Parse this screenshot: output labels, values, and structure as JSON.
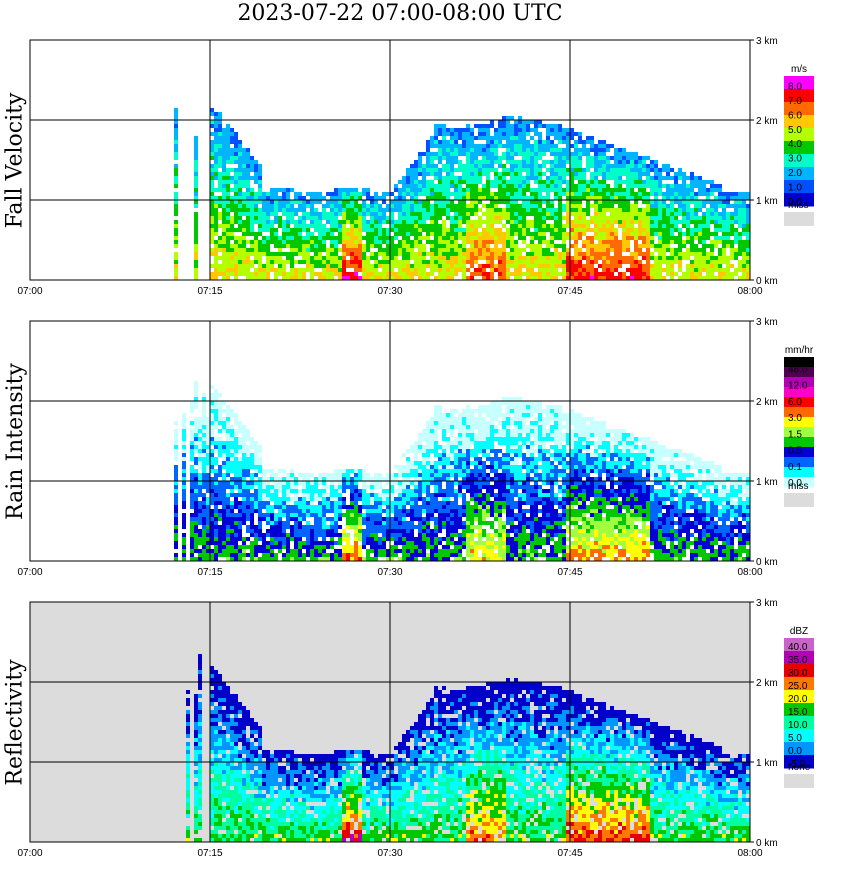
{
  "title": "2023-07-22   07:00-08:00 UTC",
  "colors": {
    "missing": "#dcdcdc",
    "grid": "#000000"
  },
  "chart_data": [
    {
      "type": "heatmap",
      "ylabel": "Fall Velocity",
      "x_ticks": [
        "07:00",
        "07:15",
        "07:30",
        "07:45",
        "08:00"
      ],
      "y_ticks": [
        "0 km",
        "1 km",
        "2 km",
        "3 km"
      ],
      "legend": {
        "unit": "m/s",
        "entries": [
          "8.0",
          "7.0",
          "6.0",
          "5.0",
          "4.0",
          "3.0",
          "2.0",
          "1.0",
          "0.0"
        ],
        "colors": [
          "#ff00ff",
          "#ff0000",
          "#ff6a00",
          "#ffc800",
          "#b4ff00",
          "#00c800",
          "#00ffc8",
          "#00b4ff",
          "#0050ff",
          "#0000d2"
        ],
        "missing_label": "miss"
      }
    },
    {
      "type": "heatmap",
      "ylabel": "Rain Intensity",
      "x_ticks": [
        "07:00",
        "07:15",
        "07:30",
        "07:45",
        "08:00"
      ],
      "y_ticks": [
        "0 km",
        "1 km",
        "2 km",
        "3 km"
      ],
      "legend": {
        "unit": "mm/hr",
        "entries": [
          "48.0",
          "12.0",
          "6.0",
          "3.0",
          "1.5",
          "0.5",
          "0.1",
          "0.0"
        ],
        "colors": [
          "#000000",
          "#500050",
          "#b400b4",
          "#ff00c8",
          "#ff0000",
          "#ff6a00",
          "#ffff00",
          "#a0ff40",
          "#00c800",
          "#0000d2",
          "#0064ff",
          "#00ffff",
          "#c8ffff"
        ],
        "missing_label": "miss"
      }
    },
    {
      "type": "heatmap",
      "ylabel": "Reflectivity",
      "x_ticks": [
        "07:00",
        "07:15",
        "07:30",
        "07:45",
        "08:00"
      ],
      "y_ticks": [
        "0 km",
        "1 km",
        "2 km",
        "3 km"
      ],
      "legend": {
        "unit": "dBZ",
        "entries": [
          "40.0",
          "35.0",
          "30.0",
          "25.0",
          "20.0",
          "15.0",
          "10.0",
          "5.0",
          "0.0",
          "-5.0"
        ],
        "colors": [
          "#c864c8",
          "#b400b4",
          "#e60000",
          "#ff7800",
          "#ffff00",
          "#00c800",
          "#00ffa0",
          "#00ffff",
          "#0096ff",
          "#0000c8"
        ],
        "missing_label": "none"
      }
    }
  ]
}
